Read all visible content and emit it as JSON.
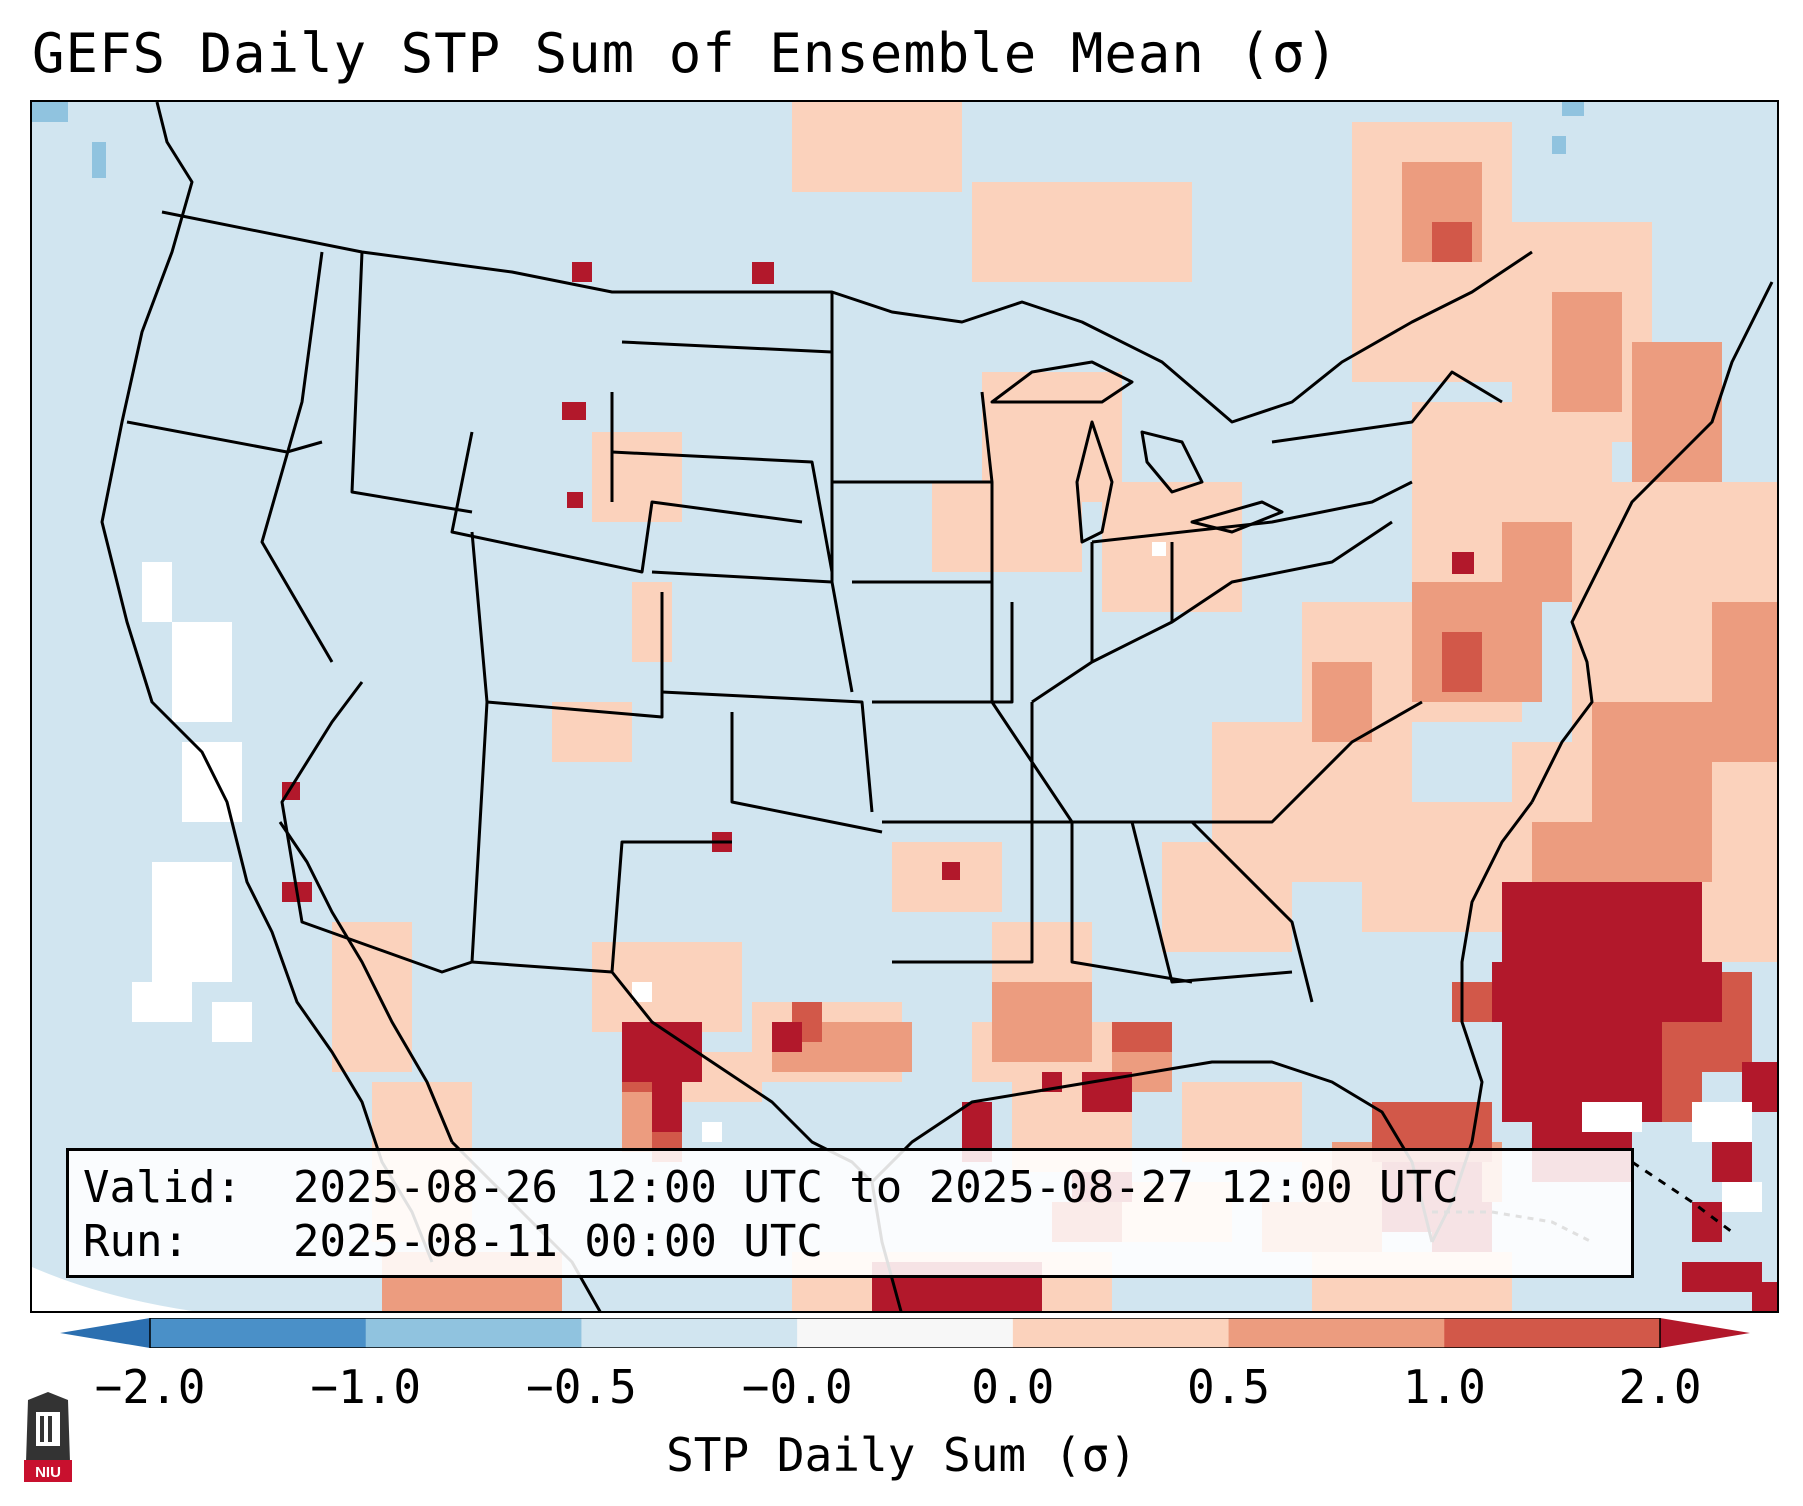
{
  "title": "GEFS Daily STP Sum of Ensemble Mean (σ)",
  "info": {
    "valid_label": "Valid:",
    "valid_value": "2025-08-26 12:00 UTC to 2025-08-27 12:00 UTC",
    "run_label": "Run:",
    "run_value": "2025-08-11 00:00 UTC"
  },
  "colorbar": {
    "label": "STP Daily Sum (σ)",
    "ticks": [
      "−2.0",
      "−1.0",
      "−0.5",
      "−0.0",
      "0.0",
      "0.5",
      "1.0",
      "2.0"
    ],
    "bins": [
      {
        "from": -2.0,
        "to": -1.0,
        "color": "#4a90c8"
      },
      {
        "from": -1.0,
        "to": -0.5,
        "color": "#90c3df"
      },
      {
        "from": -0.5,
        "to": -0.0,
        "color": "#d1e5f0"
      },
      {
        "from": -0.0,
        "to": 0.0,
        "color": "#f7f7f7"
      },
      {
        "from": 0.0,
        "to": 0.5,
        "color": "#fbd2bc"
      },
      {
        "from": 0.5,
        "to": 1.0,
        "color": "#ec9c7f"
      },
      {
        "from": 1.0,
        "to": 2.0,
        "color": "#d25849"
      },
      {
        "from": 2.0,
        "to": 2.0,
        "color": "#b2182b"
      }
    ],
    "extend_low_color": "#2b6fb0",
    "extend_high_color": "#b2182b"
  },
  "map": {
    "background_color": "#d1e5f0",
    "anomaly_colors": {
      "light": "#fbd2bc",
      "medium": "#ec9c7f",
      "strong": "#d25849",
      "extreme": "#b2182b",
      "neutral": "#ffffff"
    }
  },
  "logo_text": "NIU"
}
